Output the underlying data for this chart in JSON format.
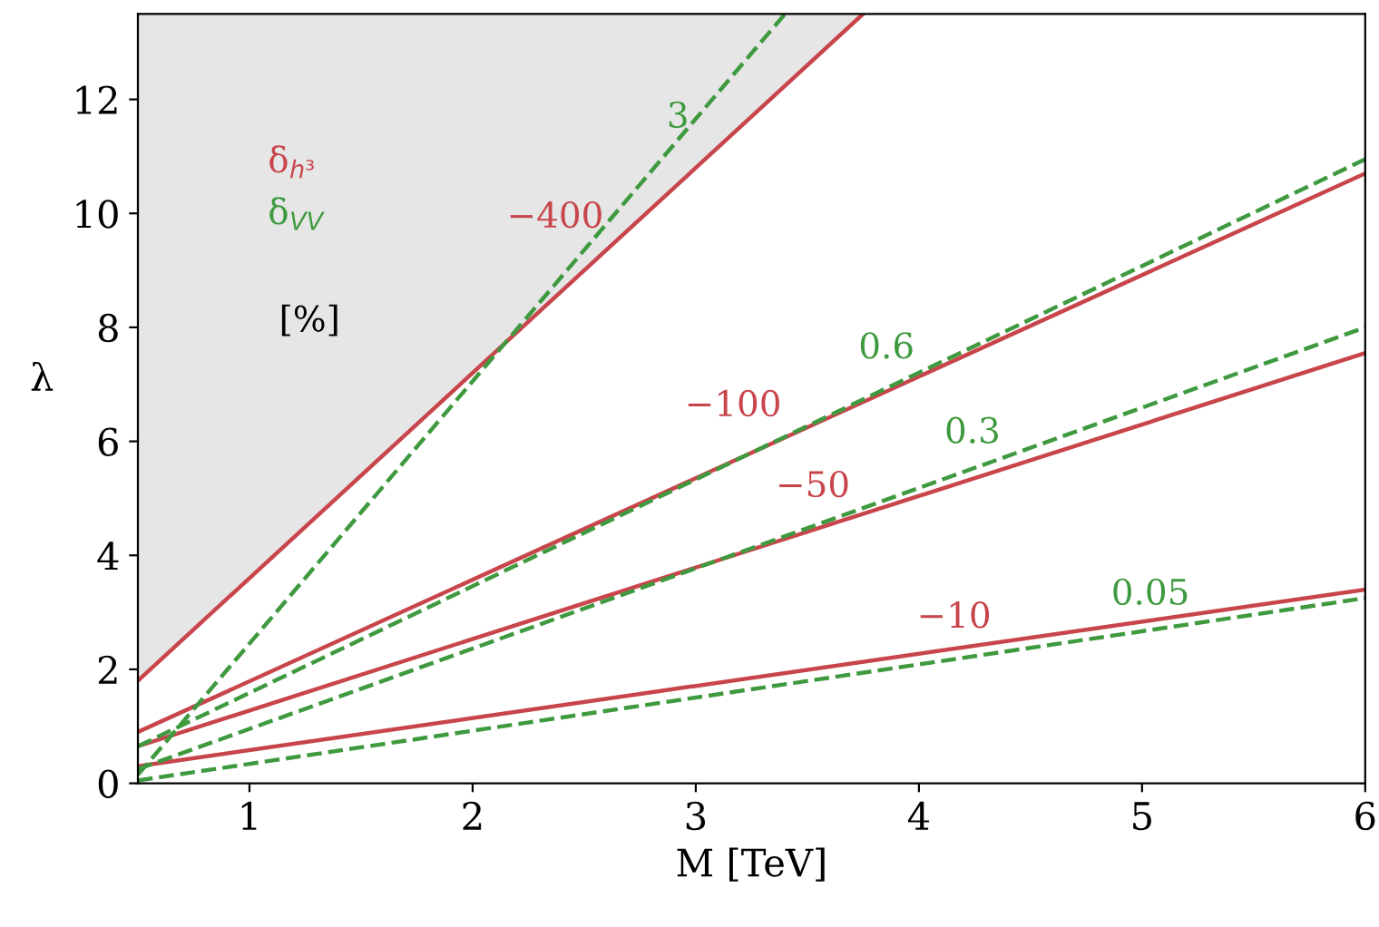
{
  "chart_data": {
    "type": "line",
    "xlabel": "M [TeV]",
    "ylabel": "λ",
    "xlim": [
      0.5,
      6
    ],
    "ylim": [
      0,
      13.5
    ],
    "xticks": [
      1,
      2,
      3,
      4,
      5,
      6
    ],
    "yticks": [
      0,
      2,
      4,
      6,
      8,
      10,
      12
    ],
    "grid": false,
    "legend": "top left",
    "marker": "none",
    "series": [
      {
        "name": "δ$_{h³}$",
        "color": "#c8454b",
        "line_style": "solid",
        "x": [
          0.5,
          3.75
        ],
        "values": [
          1.8,
          13.5
        ]
      },
      {
        "color": "#c8454b",
        "line_style": "solid",
        "x": [
          0.5,
          6
        ],
        "values": [
          0.9,
          10.7
        ]
      },
      {
        "color": "#c8454b",
        "line_style": "solid",
        "x": [
          0.5,
          6
        ],
        "values": [
          0.65,
          7.55
        ]
      },
      {
        "color": "#c8454b",
        "line_style": "solid",
        "x": [
          0.5,
          6
        ],
        "values": [
          0.3,
          3.4
        ]
      },
      {
        "name": "δ$_{VV}$",
        "color": "#3f9a3f",
        "line_style": "dashed",
        "x": [
          0.5,
          3.4
        ],
        "values": [
          0.15,
          13.5
        ]
      },
      {
        "color": "#3f9a3f",
        "line_style": "dashed",
        "x": [
          0.5,
          6
        ],
        "values": [
          0.65,
          10.95
        ]
      },
      {
        "color": "#3f9a3f",
        "line_style": "dashed",
        "x": [
          0.5,
          6
        ],
        "values": [
          0.25,
          8.0
        ]
      },
      {
        "color": "#3f9a3f",
        "line_style": "dashed",
        "x": [
          0.5,
          6
        ],
        "values": [
          0.05,
          3.25
        ]
      }
    ],
    "annotations": [
      "[%]",
      "−400",
      "−100",
      "−50",
      "−10",
      "3",
      "0.6",
      "0.3",
      "0.05"
    ]
  }
}
